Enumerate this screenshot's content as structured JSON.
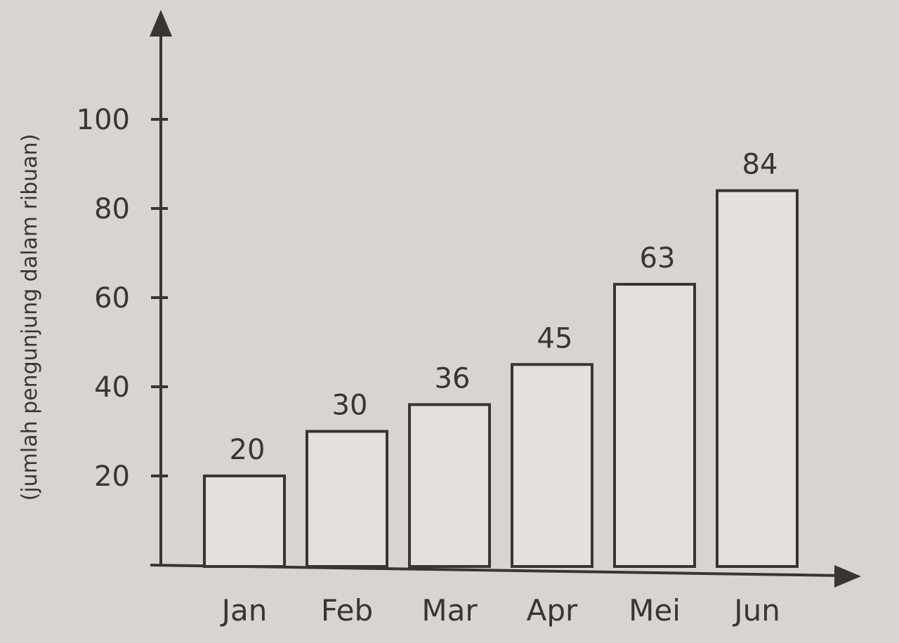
{
  "chart_data": {
    "type": "bar",
    "categories": [
      "Jan",
      "Feb",
      "Mar",
      "Apr",
      "Mei",
      "Jun"
    ],
    "values": [
      20,
      30,
      36,
      45,
      63,
      84
    ],
    "title": "",
    "xlabel": "",
    "ylabel": "(jumlah pengunjung dalam ribuan)",
    "ylim": [
      0,
      100
    ],
    "yticks": [
      20,
      40,
      60,
      80,
      100
    ],
    "data_labels": [
      "20",
      "30",
      "36",
      "45",
      "63",
      "84"
    ],
    "grid": false,
    "colors": {
      "bar_fill": "#e4e1dc",
      "stroke": "#3a3432",
      "background": "#d8d4cf"
    }
  }
}
